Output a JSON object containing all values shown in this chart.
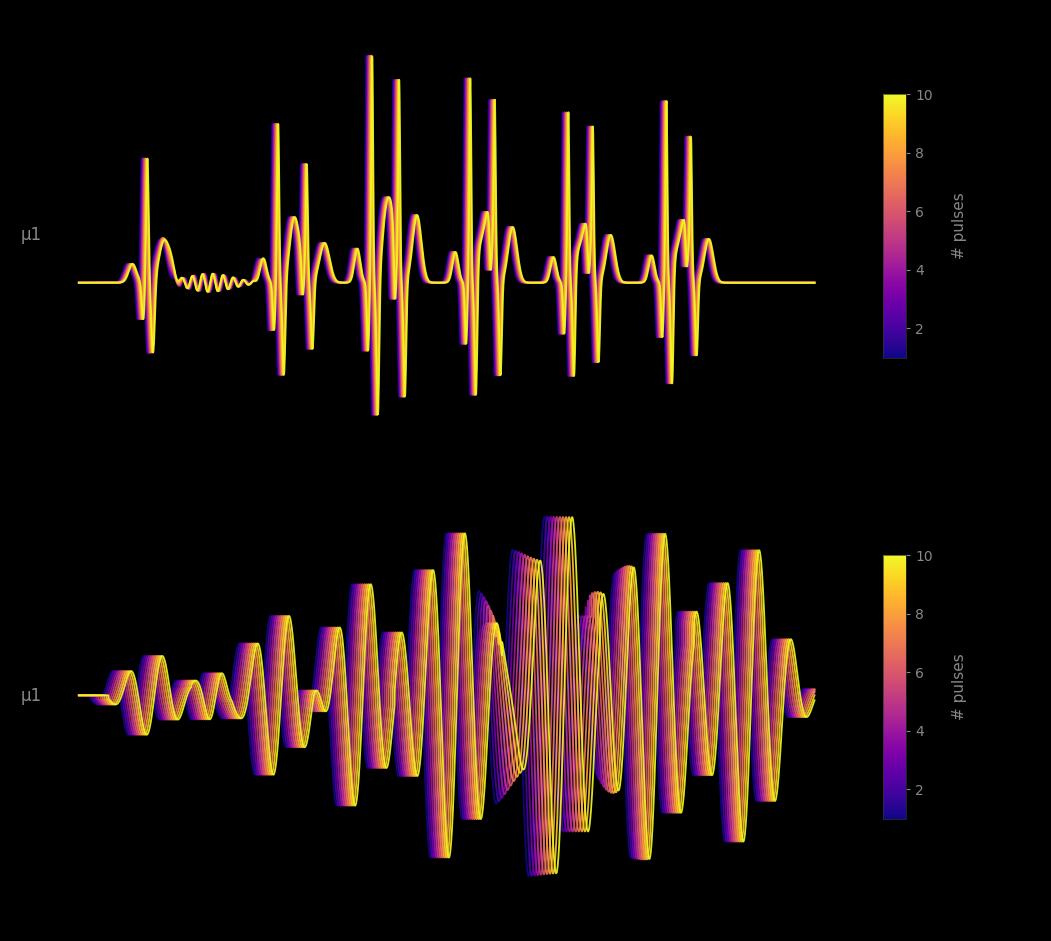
{
  "background_color": "#000000",
  "text_color": "#888888",
  "cmap": "plasma",
  "n_pulses_min": 1,
  "n_pulses_max": 10,
  "colorbar_ticks": [
    2,
    4,
    6,
    8,
    10
  ],
  "colorbar_label": "# pulses",
  "ylabel_top": "μ1",
  "ylabel_bottom": "μ1",
  "figsize": [
    10.51,
    9.41
  ],
  "dpi": 100
}
